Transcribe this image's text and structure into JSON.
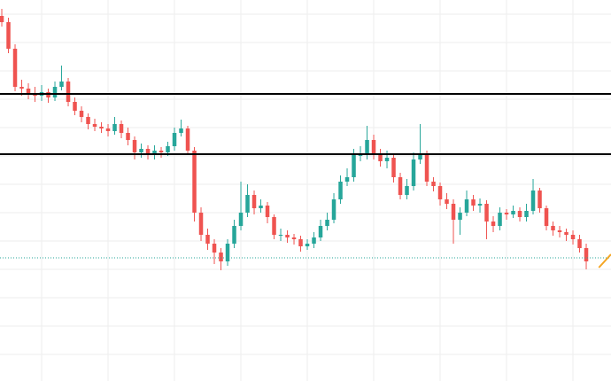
{
  "chart_data": {
    "type": "candlestick",
    "up_color": "#26a69a",
    "down_color": "#ef5350",
    "grid": true,
    "grid_color": "#eeeeee",
    "xlim": [
      -0.27,
      91.73
    ],
    "ylim": [
      0,
      430
    ],
    "xticks": [
      6,
      16,
      26,
      36,
      46,
      56,
      66,
      76,
      86
    ],
    "yticks": [
      30,
      62,
      94,
      126,
      158,
      190,
      222,
      254,
      286,
      318,
      350,
      382,
      414
    ],
    "open": [
      412,
      405,
      375,
      332,
      330,
      325,
      322,
      326,
      320,
      332,
      338,
      315,
      305,
      298,
      290,
      287,
      285,
      282,
      290,
      280,
      272,
      258,
      262,
      255,
      260,
      258,
      265,
      280,
      285,
      260,
      190,
      165,
      155,
      145,
      135,
      155,
      175,
      190,
      210,
      195,
      198,
      185,
      165,
      165,
      162,
      160,
      152,
      155,
      162,
      175,
      182,
      205,
      225,
      230,
      255,
      255,
      272,
      255,
      248,
      252,
      230,
      210,
      220,
      250,
      255,
      225,
      220,
      205,
      200,
      182,
      190,
      205,
      198,
      200,
      180,
      175,
      190,
      188,
      192,
      185,
      192,
      215,
      195,
      175,
      170,
      168,
      165,
      160,
      150
    ],
    "high": [
      420,
      410,
      380,
      340,
      336,
      332,
      334,
      330,
      338,
      356,
      342,
      320,
      310,
      302,
      296,
      292,
      290,
      298,
      294,
      286,
      276,
      268,
      266,
      266,
      264,
      270,
      286,
      295,
      288,
      264,
      196,
      172,
      160,
      150,
      160,
      182,
      225,
      222,
      215,
      205,
      202,
      188,
      172,
      170,
      166,
      164,
      160,
      168,
      182,
      190,
      212,
      232,
      240,
      262,
      265,
      288,
      278,
      262,
      260,
      256,
      235,
      228,
      258,
      290,
      260,
      230,
      224,
      212,
      205,
      196,
      215,
      210,
      206,
      204,
      186,
      196,
      194,
      198,
      196,
      200,
      228,
      218,
      198,
      180,
      175,
      172,
      170,
      165,
      155
    ],
    "low": [
      400,
      370,
      327,
      322,
      318,
      315,
      316,
      314,
      316,
      328,
      310,
      300,
      292,
      284,
      282,
      280,
      276,
      278,
      274,
      266,
      250,
      252,
      250,
      250,
      252,
      254,
      260,
      276,
      255,
      180,
      158,
      148,
      132,
      125,
      130,
      150,
      170,
      185,
      188,
      190,
      178,
      160,
      158,
      156,
      154,
      146,
      148,
      150,
      158,
      170,
      178,
      200,
      220,
      225,
      248,
      250,
      250,
      242,
      240,
      224,
      205,
      205,
      215,
      245,
      220,
      214,
      198,
      194,
      155,
      165,
      186,
      192,
      190,
      160,
      168,
      170,
      182,
      184,
      180,
      180,
      188,
      190,
      170,
      164,
      162,
      158,
      154,
      145,
      126
    ],
    "close": [
      405,
      375,
      332,
      330,
      325,
      322,
      326,
      320,
      332,
      338,
      315,
      305,
      298,
      290,
      287,
      285,
      282,
      290,
      280,
      272,
      258,
      262,
      255,
      260,
      258,
      265,
      280,
      285,
      260,
      190,
      165,
      155,
      145,
      135,
      155,
      175,
      190,
      210,
      195,
      198,
      185,
      165,
      165,
      162,
      160,
      152,
      155,
      162,
      175,
      182,
      205,
      225,
      230,
      255,
      255,
      272,
      255,
      248,
      252,
      230,
      210,
      220,
      250,
      255,
      225,
      220,
      205,
      200,
      182,
      190,
      205,
      198,
      200,
      180,
      175,
      190,
      188,
      192,
      185,
      192,
      215,
      195,
      175,
      170,
      168,
      165,
      160,
      150,
      135
    ],
    "hlines": [
      {
        "value": 324,
        "color": "#000000",
        "style": "solid"
      },
      {
        "value": 256,
        "color": "#000000",
        "style": "solid"
      },
      {
        "value": 139,
        "color": "#26a69a",
        "style": "dotted"
      }
    ],
    "trend_line": {
      "x": [
        89.9,
        91.73
      ],
      "y": [
        128,
        143
      ],
      "color": "#f5a623"
    }
  }
}
